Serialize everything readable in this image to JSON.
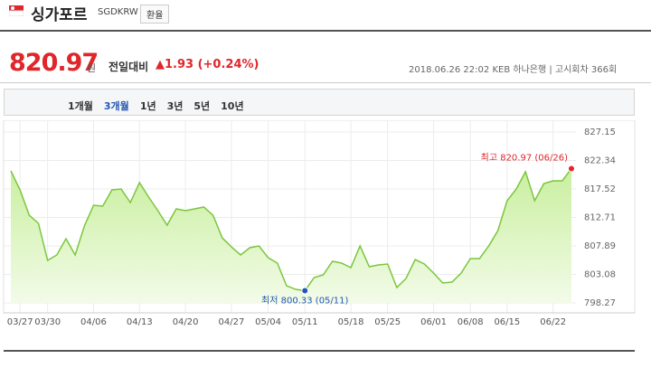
{
  "header": {
    "name": "싱가포르",
    "code": "SGDKRW",
    "button": "환율"
  },
  "quote": {
    "price": "820.97",
    "unit": "원",
    "change_label": "전일대비",
    "change": "1.93 (+0.24%)",
    "datetime": "2018.06.26 22:02",
    "bank": "KEB 하나은행",
    "round": "고시회차 366회"
  },
  "tabs": [
    "1개월",
    "3개월",
    "1년",
    "3년",
    "5년",
    "10년"
  ],
  "chart_data": {
    "type": "area",
    "color": "#7cc63c",
    "grid": true,
    "categories": [
      null,
      "03/27",
      null,
      null,
      "03/30",
      null,
      null,
      null,
      null,
      "04/06",
      null,
      null,
      null,
      null,
      "04/13",
      null,
      null,
      null,
      null,
      "04/20",
      null,
      null,
      null,
      null,
      "04/27",
      null,
      null,
      null,
      "05/04",
      null,
      null,
      null,
      "05/11",
      null,
      null,
      null,
      null,
      "05/18",
      null,
      null,
      null,
      "05/25",
      null,
      null,
      null,
      null,
      "06/01",
      null,
      null,
      null,
      "06/08",
      null,
      null,
      null,
      "06/15",
      null,
      null,
      null,
      null,
      "06/22",
      null,
      null
    ],
    "values": [
      820.58,
      817.37,
      813.09,
      811.72,
      805.45,
      806.37,
      809.12,
      806.37,
      811.26,
      814.77,
      814.62,
      817.37,
      817.52,
      815.23,
      818.6,
      816.15,
      813.86,
      811.41,
      814.16,
      813.86,
      814.16,
      814.47,
      813.09,
      809.27,
      807.74,
      806.37,
      807.59,
      807.89,
      805.91,
      804.99,
      801.17,
      800.56,
      800.33,
      802.55,
      803.01,
      805.3,
      804.99,
      804.23,
      807.89,
      804.38,
      804.69,
      804.84,
      800.87,
      802.4,
      805.6,
      804.84,
      803.31,
      801.63,
      801.78,
      803.31,
      805.76,
      805.76,
      807.89,
      810.49,
      815.54,
      817.52,
      820.43,
      815.54,
      818.44,
      818.9,
      818.9,
      820.97
    ],
    "ylim": [
      798.27,
      827.15
    ],
    "yticks": [
      798.27,
      803.08,
      807.89,
      812.71,
      817.52,
      822.34,
      827.15
    ],
    "max_label": "최고 820.97 (06/26)",
    "min_label": "최저 800.33 (05/11)"
  }
}
